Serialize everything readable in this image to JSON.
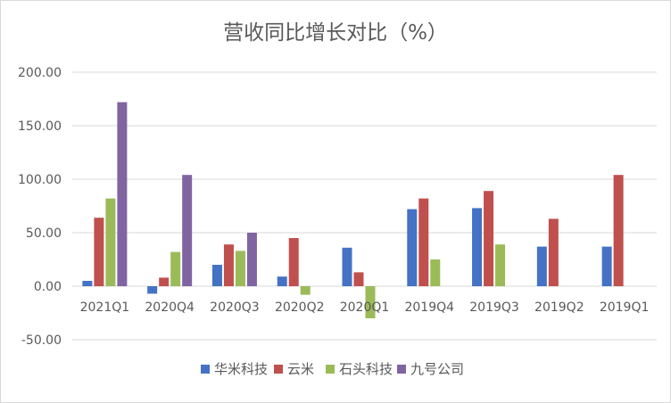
{
  "chart_data": {
    "type": "bar",
    "title": "营收同比增长对比（%）",
    "xlabel": "",
    "ylabel": "",
    "ylim": [
      -50,
      200
    ],
    "yticks": [
      -50,
      0,
      50,
      100,
      150,
      200
    ],
    "ytick_labels": [
      "-50.00",
      "0.00",
      "50.00",
      "100.00",
      "150.00",
      "200.00"
    ],
    "grid": true,
    "legend_position": "bottom",
    "categories": [
      "2021Q1",
      "2020Q4",
      "2020Q3",
      "2020Q2",
      "2020Q1",
      "2019Q4",
      "2019Q3",
      "2019Q2",
      "2019Q1"
    ],
    "series": [
      {
        "name": "华米科技",
        "color": "#4472c4",
        "values": [
          5,
          -7,
          20,
          9,
          36,
          72,
          73,
          37,
          37
        ]
      },
      {
        "name": "云米",
        "color": "#c0504d",
        "values": [
          64,
          8,
          39,
          45,
          13,
          82,
          89,
          63,
          104
        ]
      },
      {
        "name": "石头科技",
        "color": "#9bbb59",
        "values": [
          82,
          32,
          33,
          -8,
          -30,
          25,
          39,
          null,
          null
        ]
      },
      {
        "name": "九号公司",
        "color": "#8064a2",
        "values": [
          172,
          104,
          50,
          null,
          null,
          null,
          null,
          null,
          null
        ]
      }
    ]
  }
}
